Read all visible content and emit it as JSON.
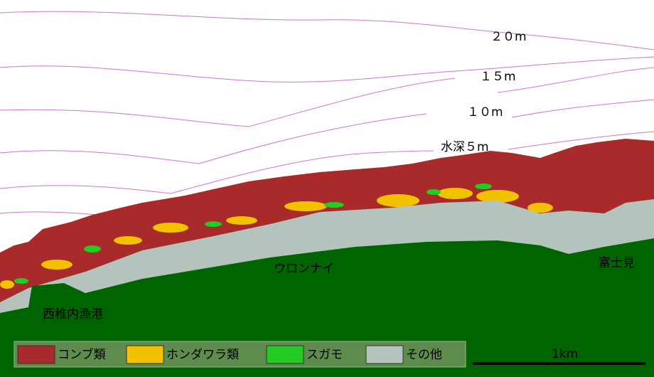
{
  "depth_labels": [
    "２０m",
    "１５m",
    "１０m",
    "水深５m"
  ],
  "places": [
    "西稚内漁港",
    "ウロンナイ",
    "富士見"
  ],
  "legend": [
    {
      "label": "コンブ類",
      "color": "#a82a2a"
    },
    {
      "label": "ホンダワラ類",
      "color": "#f2c200"
    },
    {
      "label": "スガモ",
      "color": "#22cc22"
    },
    {
      "label": "その他",
      "color": "#b4c4bc"
    }
  ],
  "scale_bar": "1km"
}
